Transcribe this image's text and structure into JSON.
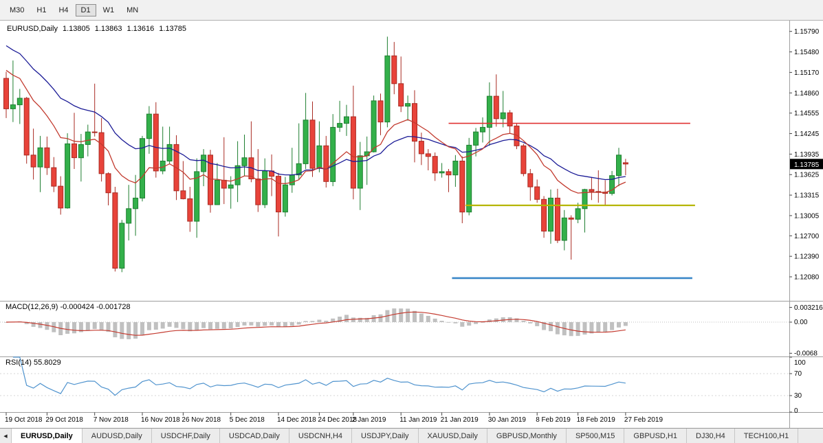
{
  "toolbar": {
    "timeframes": [
      "M30",
      "H1",
      "H4",
      "D1",
      "W1",
      "MN"
    ],
    "active": "D1"
  },
  "chart_header": {
    "symbol": "EURUSD,Daily",
    "open": "1.13805",
    "high": "1.13863",
    "low": "1.13616",
    "close": "1.13785"
  },
  "price_axis": {
    "labels": [
      "1.15790",
      "1.15480",
      "1.15170",
      "1.14860",
      "1.14555",
      "1.14245",
      "1.13935",
      "1.13625",
      "1.13315",
      "1.13005",
      "1.12700",
      "1.12390",
      "1.12080"
    ],
    "current_price": "1.13785"
  },
  "macd_panel": {
    "label": "MACD(12,26,9) -0.000424 -0.001728",
    "values": [
      "-0.000424",
      "-0.001728"
    ],
    "axis_labels": [
      "0.003216",
      "0.00",
      "-0.0068"
    ]
  },
  "rsi_panel": {
    "label": "RSI(14) 55.8029",
    "value": "55.8029",
    "axis_labels": [
      "100",
      "70",
      "30",
      "0"
    ]
  },
  "icons": {
    "tab_scroll_left": "◀"
  },
  "tabs": {
    "active": "EURUSD,Daily",
    "items": [
      "EURUSD,Daily",
      "AUDUSD,Daily",
      "USDCHF,Daily",
      "USDCAD,Daily",
      "USDCNH,H4",
      "USDJPY,Daily",
      "XAUUSD,Daily",
      "GBPUSD,Monthly",
      "SP500,M15",
      "GBPUSD,H1",
      "DJ30,H4",
      "TECH100,H1"
    ]
  },
  "chart_data": {
    "type": "candlestick",
    "title": "EURUSD,Daily",
    "price_range": [
      1.118,
      1.1587
    ],
    "macd_range": [
      -0.0075,
      0.0045
    ],
    "rsi_levels": [
      70,
      30
    ],
    "x_labels": [
      {
        "i": 0,
        "t": "19 Oct 2018"
      },
      {
        "i": 6,
        "t": "29 Oct 2018"
      },
      {
        "i": 13,
        "t": "7 Nov 2018"
      },
      {
        "i": 20,
        "t": "16 Nov 2018"
      },
      {
        "i": 26,
        "t": "26 Nov 2018"
      },
      {
        "i": 33,
        "t": "5 Dec 2018"
      },
      {
        "i": 40,
        "t": "14 Dec 2018"
      },
      {
        "i": 46,
        "t": "24 Dec 2018"
      },
      {
        "i": 51,
        "t": "2 Jan 2019"
      },
      {
        "i": 58,
        "t": "11 Jan 2019"
      },
      {
        "i": 64,
        "t": "21 Jan 2019"
      },
      {
        "i": 71,
        "t": "30 Jan 2019"
      },
      {
        "i": 78,
        "t": "8 Feb 2019"
      },
      {
        "i": 84,
        "t": "18 Feb 2019"
      },
      {
        "i": 91,
        "t": "27 Feb 2019"
      }
    ],
    "hlines": [
      {
        "name": "resistance-line-red",
        "price": 1.144,
        "color": "#e03131",
        "width": 1.7,
        "from": 65,
        "to": 100.5
      },
      {
        "name": "support-line-yellow",
        "price": 1.1316,
        "color": "#b5b500",
        "width": 2.2,
        "from": 67.5,
        "to": 101.2
      },
      {
        "name": "support-line-blue",
        "price": 1.1206,
        "color": "#3a87c8",
        "width": 2.6,
        "from": 65.5,
        "to": 100.8
      }
    ],
    "moving_averages": [
      {
        "name": "ma-slow-line",
        "period": 26,
        "seed": 1.1565,
        "color": "#1b1b96"
      },
      {
        "name": "ma-fast-line",
        "period": 13,
        "seed": 1.153,
        "color": "#c23a2e"
      }
    ],
    "style": {
      "up_fill": "#33b04a",
      "up_border": "#1e7e30",
      "down_fill": "#e8433a",
      "down_border": "#a92a22",
      "macd_bar": "#c0c0c0",
      "macd_signal": "#c43a2f",
      "rsi": "#4f93ce",
      "separator": "#9e9e9e",
      "badge_bg": "#000000",
      "badge_text": "#ffffff"
    },
    "candles": [
      [
        1.1508,
        1.1518,
        1.1448,
        1.1462
      ],
      [
        1.1462,
        1.1535,
        1.1442,
        1.1468
      ],
      [
        1.1468,
        1.1492,
        1.1439,
        1.1478
      ],
      [
        1.1478,
        1.148,
        1.1379,
        1.1392
      ],
      [
        1.1392,
        1.1432,
        1.1355,
        1.1374
      ],
      [
        1.1374,
        1.1421,
        1.1336,
        1.1403
      ],
      [
        1.1403,
        1.142,
        1.1362,
        1.1373
      ],
      [
        1.1373,
        1.1389,
        1.1336,
        1.1345
      ],
      [
        1.1345,
        1.136,
        1.1302,
        1.1312
      ],
      [
        1.1312,
        1.1425,
        1.1311,
        1.1409
      ],
      [
        1.1409,
        1.1456,
        1.1371,
        1.1388
      ],
      [
        1.1388,
        1.1424,
        1.1352,
        1.1408
      ],
      [
        1.1408,
        1.1438,
        1.139,
        1.1427
      ],
      [
        1.1427,
        1.15,
        1.142,
        1.1426
      ],
      [
        1.1426,
        1.1448,
        1.1352,
        1.1364
      ],
      [
        1.1364,
        1.1366,
        1.1316,
        1.1335
      ],
      [
        1.1335,
        1.1344,
        1.1216,
        1.1221
      ],
      [
        1.1221,
        1.1294,
        1.1215,
        1.1289
      ],
      [
        1.1289,
        1.1347,
        1.1263,
        1.1311
      ],
      [
        1.1311,
        1.1362,
        1.127,
        1.1327
      ],
      [
        1.1327,
        1.1421,
        1.1322,
        1.1417
      ],
      [
        1.1417,
        1.1466,
        1.1394,
        1.1454
      ],
      [
        1.1454,
        1.1472,
        1.1358,
        1.1368
      ],
      [
        1.1368,
        1.1435,
        1.1363,
        1.1383
      ],
      [
        1.1383,
        1.1435,
        1.1378,
        1.1408
      ],
      [
        1.1408,
        1.1422,
        1.1324,
        1.1338
      ],
      [
        1.1338,
        1.1383,
        1.1325,
        1.1326
      ],
      [
        1.1326,
        1.1344,
        1.1276,
        1.1292
      ],
      [
        1.1292,
        1.1387,
        1.1267,
        1.1367
      ],
      [
        1.1367,
        1.1401,
        1.1345,
        1.1392
      ],
      [
        1.1392,
        1.14,
        1.1305,
        1.1317
      ],
      [
        1.1317,
        1.138,
        1.1317,
        1.1354
      ],
      [
        1.1354,
        1.1419,
        1.1318,
        1.1342
      ],
      [
        1.1342,
        1.136,
        1.1311,
        1.1347
      ],
      [
        1.1347,
        1.1413,
        1.1321,
        1.1376
      ],
      [
        1.1376,
        1.1423,
        1.136,
        1.1388
      ],
      [
        1.1388,
        1.1443,
        1.1351,
        1.1356
      ],
      [
        1.1356,
        1.1401,
        1.1306,
        1.1317
      ],
      [
        1.1317,
        1.1387,
        1.1312,
        1.1368
      ],
      [
        1.1368,
        1.1393,
        1.133,
        1.136
      ],
      [
        1.136,
        1.1365,
        1.1269,
        1.1306
      ],
      [
        1.1306,
        1.1359,
        1.1299,
        1.1347
      ],
      [
        1.1347,
        1.1403,
        1.1335,
        1.1362
      ],
      [
        1.1362,
        1.144,
        1.1355,
        1.1379
      ],
      [
        1.1379,
        1.1486,
        1.1371,
        1.1445
      ],
      [
        1.1445,
        1.1473,
        1.1359,
        1.1372
      ],
      [
        1.1372,
        1.1443,
        1.1366,
        1.1406
      ],
      [
        1.1406,
        1.1421,
        1.1343,
        1.1352
      ],
      [
        1.1352,
        1.1454,
        1.1345,
        1.1434
      ],
      [
        1.1434,
        1.1474,
        1.1427,
        1.144
      ],
      [
        1.144,
        1.1468,
        1.1421,
        1.145
      ],
      [
        1.145,
        1.1497,
        1.1325,
        1.1342
      ],
      [
        1.1342,
        1.1412,
        1.1309,
        1.1391
      ],
      [
        1.1391,
        1.142,
        1.1347,
        1.1397
      ],
      [
        1.1397,
        1.1482,
        1.1396,
        1.1474
      ],
      [
        1.1474,
        1.1485,
        1.1422,
        1.1442
      ],
      [
        1.1442,
        1.1571,
        1.1434,
        1.1542
      ],
      [
        1.1542,
        1.1563,
        1.1484,
        1.15
      ],
      [
        1.15,
        1.1541,
        1.1457,
        1.1466
      ],
      [
        1.1466,
        1.1482,
        1.1444,
        1.147
      ],
      [
        1.147,
        1.149,
        1.1381,
        1.1413
      ],
      [
        1.1413,
        1.1426,
        1.1377,
        1.1394
      ],
      [
        1.1394,
        1.1401,
        1.1369,
        1.139
      ],
      [
        1.139,
        1.1396,
        1.1353,
        1.1365
      ],
      [
        1.1365,
        1.138,
        1.1358,
        1.1367
      ],
      [
        1.1367,
        1.1371,
        1.1336,
        1.1362
      ],
      [
        1.1362,
        1.1392,
        1.1344,
        1.1383
      ],
      [
        1.1383,
        1.139,
        1.1289,
        1.1306
      ],
      [
        1.1306,
        1.1418,
        1.1301,
        1.1407
      ],
      [
        1.1407,
        1.1433,
        1.139,
        1.1427
      ],
      [
        1.1427,
        1.1449,
        1.1411,
        1.1434
      ],
      [
        1.1434,
        1.1502,
        1.1406,
        1.1481
      ],
      [
        1.1481,
        1.1514,
        1.1435,
        1.1447
      ],
      [
        1.1447,
        1.1489,
        1.1434,
        1.1456
      ],
      [
        1.1456,
        1.146,
        1.1425,
        1.1436
      ],
      [
        1.1436,
        1.144,
        1.1401,
        1.1406
      ],
      [
        1.1406,
        1.1409,
        1.136,
        1.1364
      ],
      [
        1.1364,
        1.1371,
        1.1323,
        1.1344
      ],
      [
        1.1344,
        1.1355,
        1.132,
        1.1325
      ],
      [
        1.1325,
        1.133,
        1.1267,
        1.1277
      ],
      [
        1.1277,
        1.134,
        1.1258,
        1.1327
      ],
      [
        1.1327,
        1.1341,
        1.1259,
        1.1263
      ],
      [
        1.1263,
        1.1309,
        1.1248,
        1.1297
      ],
      [
        1.1297,
        1.1301,
        1.1234,
        1.1295
      ],
      [
        1.1295,
        1.132,
        1.1289,
        1.1311
      ],
      [
        1.1311,
        1.1341,
        1.1275,
        1.134
      ],
      [
        1.134,
        1.1358,
        1.1324,
        1.1337
      ],
      [
        1.1337,
        1.1369,
        1.132,
        1.1336
      ],
      [
        1.1336,
        1.1354,
        1.1317,
        1.1334
      ],
      [
        1.1334,
        1.1368,
        1.1331,
        1.1361
      ],
      [
        1.1361,
        1.1403,
        1.1345,
        1.1392
      ],
      [
        1.13805,
        1.13863,
        1.13616,
        1.13785
      ]
    ]
  }
}
